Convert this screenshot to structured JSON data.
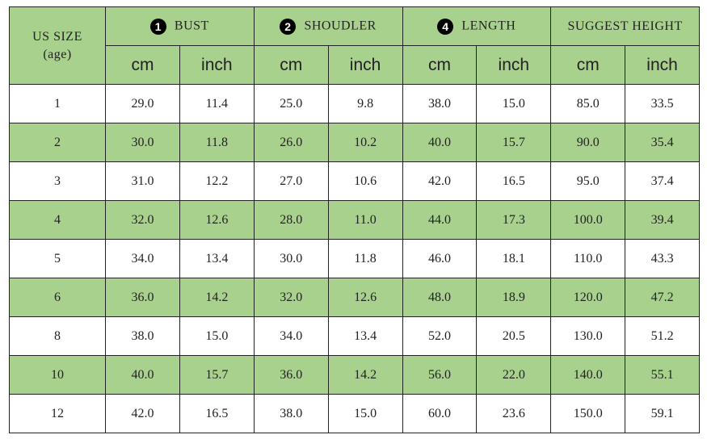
{
  "header": {
    "size_label": "US SIZE",
    "size_sub": "(age)",
    "groups": [
      {
        "marker": "1",
        "label": "BUST"
      },
      {
        "marker": "2",
        "label": "SHOUDLER"
      },
      {
        "marker": "4",
        "label": "LENGTH"
      },
      {
        "label": "SUGGEST HEIGHT"
      }
    ],
    "units": [
      "cm",
      "inch",
      "cm",
      "inch",
      "cm",
      "inch",
      "cm",
      "inch"
    ]
  },
  "rows": [
    {
      "size": "1",
      "values": [
        "29.0",
        "11.4",
        "25.0",
        "9.8",
        "38.0",
        "15.0",
        "85.0",
        "33.5"
      ]
    },
    {
      "size": "2",
      "values": [
        "30.0",
        "11.8",
        "26.0",
        "10.2",
        "40.0",
        "15.7",
        "90.0",
        "35.4"
      ]
    },
    {
      "size": "3",
      "values": [
        "31.0",
        "12.2",
        "27.0",
        "10.6",
        "42.0",
        "16.5",
        "95.0",
        "37.4"
      ]
    },
    {
      "size": "4",
      "values": [
        "32.0",
        "12.6",
        "28.0",
        "11.0",
        "44.0",
        "17.3",
        "100.0",
        "39.4"
      ]
    },
    {
      "size": "5",
      "values": [
        "34.0",
        "13.4",
        "30.0",
        "11.8",
        "46.0",
        "18.1",
        "110.0",
        "43.3"
      ]
    },
    {
      "size": "6",
      "values": [
        "36.0",
        "14.2",
        "32.0",
        "12.6",
        "48.0",
        "18.9",
        "120.0",
        "47.2"
      ]
    },
    {
      "size": "8",
      "values": [
        "38.0",
        "15.0",
        "34.0",
        "13.4",
        "52.0",
        "20.5",
        "130.0",
        "51.2"
      ]
    },
    {
      "size": "10",
      "values": [
        "40.0",
        "15.7",
        "36.0",
        "14.2",
        "56.0",
        "22.0",
        "140.0",
        "55.1"
      ]
    },
    {
      "size": "12",
      "values": [
        "42.0",
        "16.5",
        "38.0",
        "15.0",
        "60.0",
        "23.6",
        "150.0",
        "59.1"
      ]
    }
  ]
}
